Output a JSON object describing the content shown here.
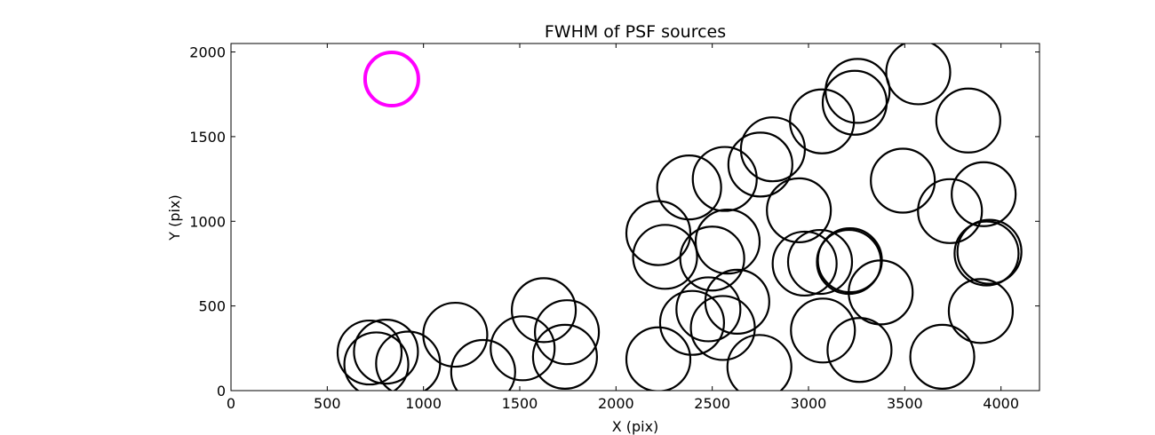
{
  "chart_data": {
    "type": "scatter",
    "title": "FWHM of PSF sources",
    "xlabel": "X (pix)",
    "ylabel": "Y (pix)",
    "xlim": [
      0,
      4200
    ],
    "ylim": [
      0,
      2050
    ],
    "xticks": [
      0,
      500,
      1000,
      1500,
      2000,
      2500,
      3000,
      3500,
      4000
    ],
    "yticks": [
      0,
      500,
      1000,
      1500,
      2000
    ],
    "grid": false,
    "series": [
      {
        "marker": "circle",
        "edge_color": "#000000",
        "points": [
          {
            "x": 720,
            "y": 225
          },
          {
            "x": 755,
            "y": 155
          },
          {
            "x": 805,
            "y": 230
          },
          {
            "x": 920,
            "y": 160
          },
          {
            "x": 1165,
            "y": 330
          },
          {
            "x": 1310,
            "y": 110
          },
          {
            "x": 1515,
            "y": 250
          },
          {
            "x": 1625,
            "y": 475
          },
          {
            "x": 1745,
            "y": 345
          },
          {
            "x": 1735,
            "y": 200
          },
          {
            "x": 2220,
            "y": 185
          },
          {
            "x": 2220,
            "y": 930
          },
          {
            "x": 2255,
            "y": 790
          },
          {
            "x": 2380,
            "y": 1200
          },
          {
            "x": 2395,
            "y": 400
          },
          {
            "x": 2480,
            "y": 480
          },
          {
            "x": 2555,
            "y": 370
          },
          {
            "x": 2580,
            "y": 880
          },
          {
            "x": 2500,
            "y": 780
          },
          {
            "x": 2565,
            "y": 1250
          },
          {
            "x": 2630,
            "y": 525
          },
          {
            "x": 2745,
            "y": 140
          },
          {
            "x": 2750,
            "y": 1335
          },
          {
            "x": 2815,
            "y": 1425
          },
          {
            "x": 2950,
            "y": 1065
          },
          {
            "x": 2980,
            "y": 750
          },
          {
            "x": 3060,
            "y": 760
          },
          {
            "x": 3070,
            "y": 1590
          },
          {
            "x": 3075,
            "y": 355
          },
          {
            "x": 3215,
            "y": 770
          },
          {
            "x": 3210,
            "y": 760
          },
          {
            "x": 3240,
            "y": 1700
          },
          {
            "x": 3255,
            "y": 1770
          },
          {
            "x": 3265,
            "y": 240
          },
          {
            "x": 3375,
            "y": 580
          },
          {
            "x": 3490,
            "y": 1240
          },
          {
            "x": 3570,
            "y": 1880
          },
          {
            "x": 3695,
            "y": 200
          },
          {
            "x": 3735,
            "y": 1060
          },
          {
            "x": 3830,
            "y": 1595
          },
          {
            "x": 3895,
            "y": 470
          },
          {
            "x": 3910,
            "y": 1160
          },
          {
            "x": 3925,
            "y": 810
          },
          {
            "x": 3940,
            "y": 820
          }
        ]
      },
      {
        "marker": "circle",
        "edge_color": "#ff00ff",
        "points": [
          {
            "x": 835,
            "y": 1840
          }
        ]
      }
    ]
  }
}
